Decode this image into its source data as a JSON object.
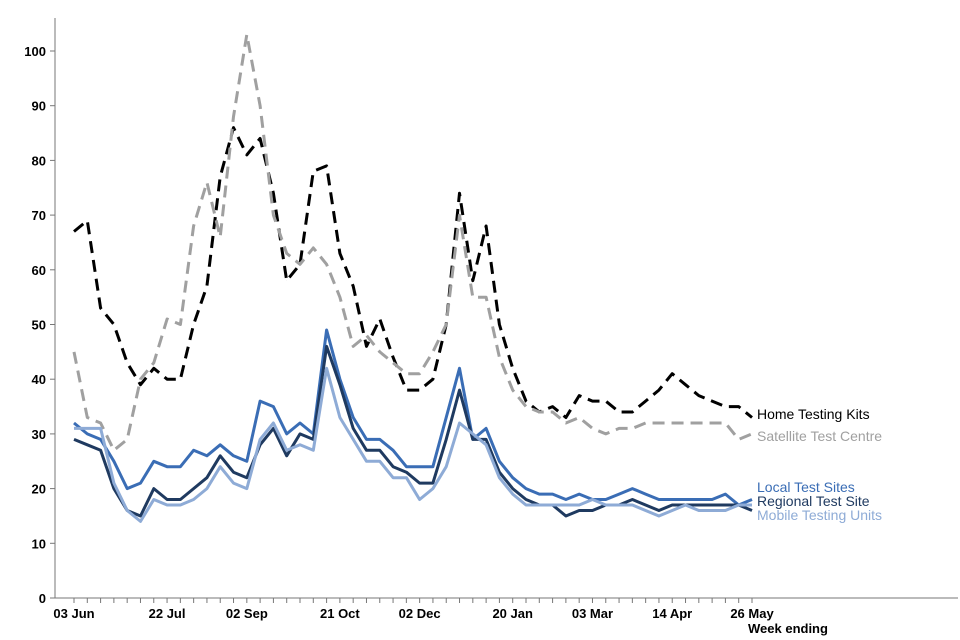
{
  "chart_data": {
    "type": "line",
    "title": "",
    "xlabel": "Week ending",
    "ylabel": "",
    "ylim": [
      0,
      105
    ],
    "yticks": [
      0,
      10,
      20,
      30,
      40,
      50,
      60,
      70,
      80,
      90,
      100
    ],
    "xtick_labels": [
      "03 Jun",
      "22 Jul",
      "02 Sep",
      "21 Oct",
      "02 Dec",
      "20 Jan",
      "03 Mar",
      "14 Apr",
      "26 May"
    ],
    "xtick_indices": [
      0,
      7,
      13,
      20,
      26,
      33,
      39,
      45,
      51
    ],
    "grid": false,
    "legend": "inline-right",
    "series": [
      {
        "name": "Home Testing Kits",
        "color": "#000000",
        "dashed": true,
        "values": [
          67,
          69,
          53,
          50,
          43,
          39,
          42,
          40,
          40,
          50,
          57,
          77,
          86,
          81,
          84,
          74,
          58,
          61,
          78,
          79,
          63,
          57,
          46,
          51,
          44,
          38,
          38,
          40,
          50,
          74,
          58,
          68,
          50,
          42,
          36,
          34,
          35,
          33,
          37,
          36,
          36,
          34,
          34,
          36,
          38,
          41,
          39,
          37,
          36,
          35,
          35,
          33
        ]
      },
      {
        "name": "Satellite Test Centre",
        "color": "#a0a0a0",
        "dashed": true,
        "values": [
          45,
          33,
          32,
          27,
          29,
          40,
          43,
          51,
          50,
          68,
          76,
          66,
          88,
          103,
          90,
          70,
          63,
          61,
          64,
          61,
          55,
          46,
          48,
          45,
          43,
          41,
          41,
          45,
          50,
          70,
          55,
          55,
          44,
          38,
          35,
          34,
          34,
          32,
          33,
          31,
          30,
          31,
          31,
          32,
          32,
          32,
          32,
          32,
          32,
          32,
          29,
          30
        ]
      },
      {
        "name": "Local Test Sites",
        "color": "#3a6db5",
        "dashed": false,
        "values": [
          32,
          30,
          29,
          25,
          20,
          21,
          25,
          24,
          24,
          27,
          26,
          28,
          26,
          25,
          36,
          35,
          30,
          32,
          30,
          49,
          40,
          33,
          29,
          29,
          27,
          24,
          24,
          24,
          33,
          42,
          29,
          31,
          25,
          22,
          20,
          19,
          19,
          18,
          19,
          18,
          18,
          19,
          20,
          19,
          18,
          18,
          18,
          18,
          18,
          19,
          17,
          18
        ]
      },
      {
        "name": "Regional Test Site",
        "color": "#1f3a60",
        "dashed": false,
        "values": [
          29,
          28,
          27,
          20,
          16,
          15,
          20,
          18,
          18,
          20,
          22,
          26,
          23,
          22,
          28,
          31,
          26,
          30,
          29,
          46,
          39,
          31,
          27,
          27,
          24,
          23,
          21,
          21,
          29,
          38,
          29,
          29,
          23,
          20,
          18,
          17,
          17,
          15,
          16,
          16,
          17,
          17,
          18,
          17,
          16,
          17,
          17,
          17,
          17,
          17,
          17,
          16
        ]
      },
      {
        "name": "Mobile Testing Units",
        "color": "#8eabd6",
        "dashed": false,
        "values": [
          31,
          31,
          31,
          21,
          16,
          14,
          18,
          17,
          17,
          18,
          20,
          24,
          21,
          20,
          29,
          32,
          27,
          28,
          27,
          42,
          33,
          29,
          25,
          25,
          22,
          22,
          18,
          20,
          24,
          32,
          30,
          28,
          22,
          19,
          17,
          17,
          17,
          17,
          17,
          18,
          17,
          17,
          17,
          16,
          15,
          16,
          17,
          16,
          16,
          16,
          17,
          17
        ]
      }
    ]
  }
}
